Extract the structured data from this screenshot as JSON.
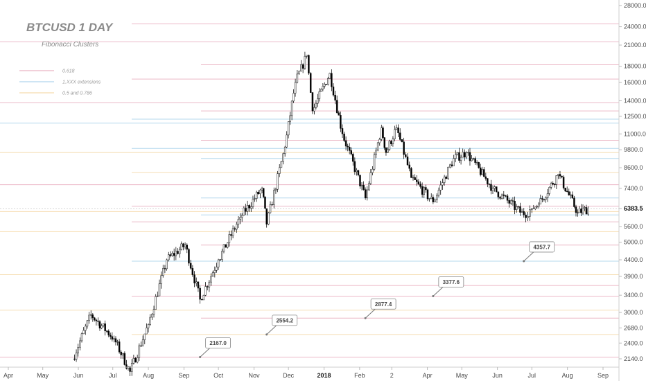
{
  "chart_data": {
    "type": "candlestick",
    "title": "BTCUSD 1 DAY",
    "subtitle": "Fibonacci Clusters",
    "legend": [
      {
        "label": "0.618",
        "color": "#e6a0b4"
      },
      {
        "label": "1.XXX extensions",
        "color": "#9ccbe8"
      },
      {
        "label": "0.5 and 0.786",
        "color": "#f3d39a"
      }
    ],
    "y_axis": {
      "scale": "log",
      "ticks": [
        2140.0,
        2400.0,
        2680.0,
        3000.0,
        3400.0,
        3900.0,
        4400.0,
        5000.0,
        5600.0,
        6383.5,
        7400.0,
        8600.0,
        9800.0,
        11000.0,
        12500.0,
        14000.0,
        16000.0,
        18000.0,
        21000.0,
        24000.0,
        28000.0
      ],
      "tick_labels": [
        "2140.0",
        "2400.0",
        "2680.0",
        "3000.0",
        "3400.0",
        "3900.0",
        "4400.0",
        "5000.0",
        "5600.0",
        "6383.5",
        "7400.0",
        "8600.0",
        "9800.0",
        "11000.0",
        "12500.0",
        "14000.0",
        "16000.0",
        "18000.0",
        "21000.0",
        "24000.0",
        "28000.0"
      ],
      "highlight_label": "6383.5"
    },
    "x_axis": {
      "tick_labels": [
        "Apr",
        "May",
        "Jun",
        "Jul",
        "Aug",
        "Sep",
        "Oct",
        "Nov",
        "Dec",
        "2018",
        "Feb",
        "2",
        "Apr",
        "May",
        "Jun",
        "Jul",
        "Aug",
        "Sep"
      ],
      "bold_labels": [
        "2018"
      ]
    },
    "price_path": {
      "dates": [
        "2017-05-27",
        "2017-06-12",
        "2017-07-02",
        "2017-07-16",
        "2017-08-01",
        "2017-08-17",
        "2017-09-02",
        "2017-09-15",
        "2017-10-01",
        "2017-10-20",
        "2017-11-08",
        "2017-11-12",
        "2017-11-28",
        "2017-12-07",
        "2017-12-17",
        "2017-12-22",
        "2018-01-06",
        "2018-01-17",
        "2018-02-06",
        "2018-02-20",
        "2018-02-24",
        "2018-03-05",
        "2018-03-18",
        "2018-04-06",
        "2018-04-24",
        "2018-05-05",
        "2018-05-28",
        "2018-06-24",
        "2018-07-01",
        "2018-07-07",
        "2018-07-24",
        "2018-08-10",
        "2018-08-19"
      ],
      "close": [
        2140,
        2950,
        2480,
        1950,
        2750,
        4400,
        4900,
        3300,
        4400,
        6000,
        7400,
        5700,
        10000,
        16000,
        19500,
        13000,
        17100,
        11000,
        6900,
        11500,
        9600,
        11500,
        8000,
        6700,
        9200,
        9600,
        7400,
        6100,
        6400,
        6600,
        8200,
        6200,
        6383.5
      ]
    },
    "fib_levels": [
      {
        "value": 24500,
        "group": "0.618"
      },
      {
        "value": 21500,
        "group": "0.618"
      },
      {
        "value": 18200,
        "group": "0.618"
      },
      {
        "value": 16400,
        "group": "0.618"
      },
      {
        "value": 13800,
        "group": "0.618"
      },
      {
        "value": 13000,
        "group": "0.618"
      },
      {
        "value": 12250,
        "group": "1.XXX extensions"
      },
      {
        "value": 11900,
        "group": "1.XXX extensions"
      },
      {
        "value": 10500,
        "group": "0.618"
      },
      {
        "value": 9900,
        "group": "1.XXX extensions"
      },
      {
        "value": 9600,
        "group": "0.5 and 0.786"
      },
      {
        "value": 9200,
        "group": "1.XXX extensions"
      },
      {
        "value": 8300,
        "group": "0.5 and 0.786"
      },
      {
        "value": 7600,
        "group": "0.618"
      },
      {
        "value": 6900,
        "group": "1.XXX extensions"
      },
      {
        "value": 6500,
        "group": "0.618"
      },
      {
        "value": 6250,
        "group": "0.5 and 0.786"
      },
      {
        "value": 6100,
        "group": "1.XXX extensions"
      },
      {
        "value": 5800,
        "group": "0.618"
      },
      {
        "value": 5400,
        "group": "0.5 and 0.786"
      },
      {
        "value": 4900,
        "group": "0.618"
      },
      {
        "value": 4357.7,
        "group": "1.XXX extensions"
      },
      {
        "value": 3950,
        "group": "0.5 and 0.786"
      },
      {
        "value": 3650,
        "group": "0.618"
      },
      {
        "value": 3377.6,
        "group": "0.618"
      },
      {
        "value": 3050,
        "group": "0.5 and 0.786"
      },
      {
        "value": 2877.4,
        "group": "0.618"
      },
      {
        "value": 2554.2,
        "group": "0.5 and 0.786"
      },
      {
        "value": 2167.0,
        "group": "0.618"
      }
    ],
    "callouts": [
      {
        "label": "2167.0",
        "date": "2017-09-15",
        "value": 2167.0
      },
      {
        "label": "2554.2",
        "date": "2017-11-12",
        "value": 2554.2
      },
      {
        "label": "2877.4",
        "date": "2018-02-06",
        "value": 2877.4
      },
      {
        "label": "3377.6",
        "date": "2018-04-06",
        "value": 3377.6
      },
      {
        "label": "4357.7",
        "date": "2018-06-24",
        "value": 4357.7
      }
    ],
    "colors": {
      "bull": "#ffffff",
      "bear": "#000000",
      "wick": "#000000",
      "axis": "#cfcfcf",
      "text": "#4a4a4a"
    }
  }
}
